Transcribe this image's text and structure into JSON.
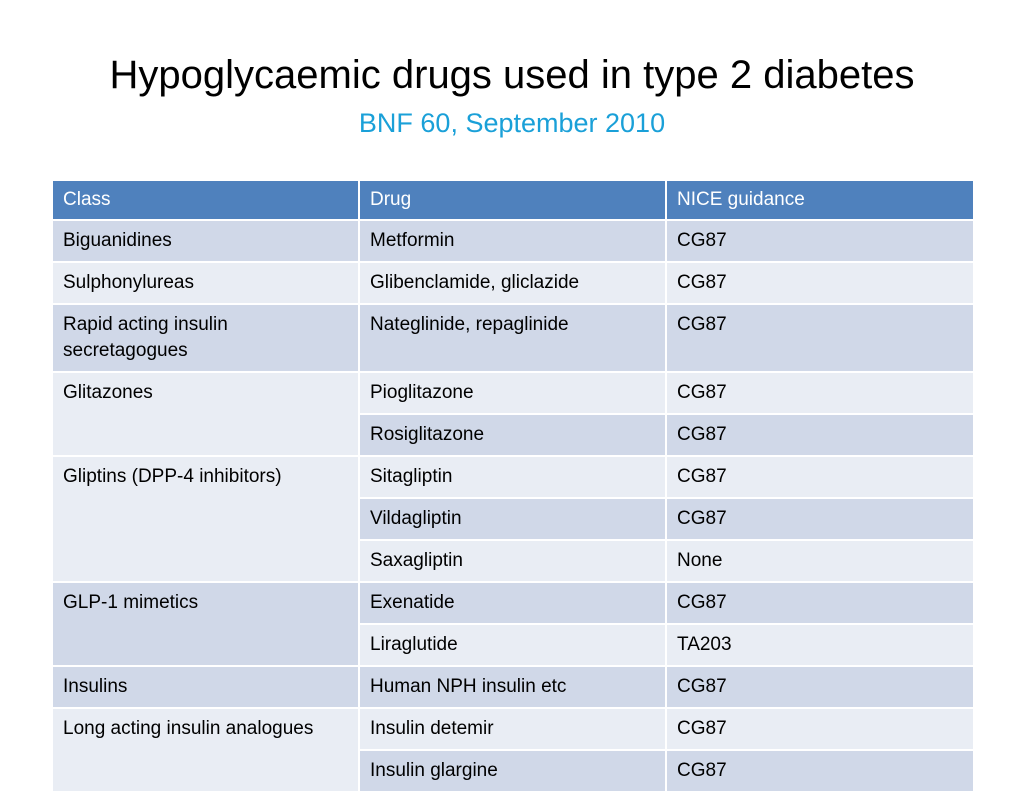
{
  "slide": {
    "title": "Hypoglycaemic drugs used in type 2 diabetes",
    "subtitle": "BNF 60, September 2010"
  },
  "table": {
    "headers": [
      "Class",
      "Drug",
      "NICE guidance"
    ],
    "groups": [
      {
        "class": "Biguanidines",
        "drugs": [
          {
            "drug": "Metformin",
            "guidance": "CG87"
          }
        ]
      },
      {
        "class": "Sulphonylureas",
        "drugs": [
          {
            "drug": "Glibenclamide, gliclazide",
            "guidance": "CG87"
          }
        ]
      },
      {
        "class": "Rapid acting insulin secretagogues",
        "drugs": [
          {
            "drug": "Nateglinide, repaglinide",
            "guidance": "CG87"
          }
        ]
      },
      {
        "class": "Glitazones",
        "drugs": [
          {
            "drug": "Pioglitazone",
            "guidance": "CG87"
          },
          {
            "drug": "Rosiglitazone",
            "guidance": "CG87"
          }
        ]
      },
      {
        "class": "Gliptins (DPP-4 inhibitors)",
        "drugs": [
          {
            "drug": "Sitagliptin",
            "guidance": "CG87"
          },
          {
            "drug": "Vildagliptin",
            "guidance": "CG87"
          },
          {
            "drug": "Saxagliptin",
            "guidance": "None"
          }
        ]
      },
      {
        "class": "GLP-1 mimetics",
        "drugs": [
          {
            "drug": "Exenatide",
            "guidance": "CG87"
          },
          {
            "drug": "Liraglutide",
            "guidance": "TA203"
          }
        ]
      },
      {
        "class": "Insulins",
        "drugs": [
          {
            "drug": "Human NPH insulin etc",
            "guidance": "CG87"
          }
        ]
      },
      {
        "class": "Long acting insulin analogues",
        "drugs": [
          {
            "drug": "Insulin detemir",
            "guidance": "CG87"
          },
          {
            "drug": "Insulin glargine",
            "guidance": "CG87"
          }
        ]
      }
    ]
  }
}
